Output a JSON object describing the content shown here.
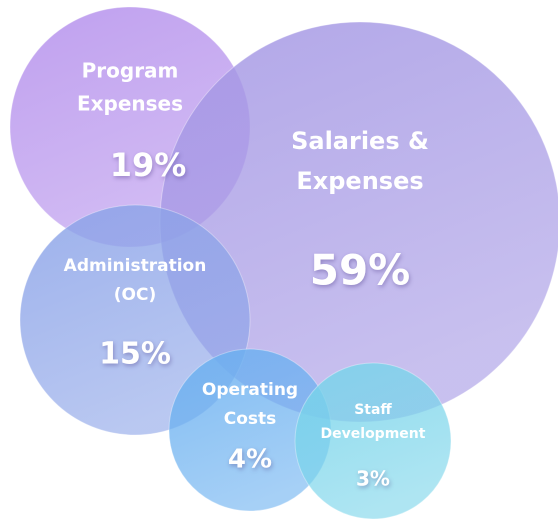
{
  "chart_data": {
    "type": "bubble",
    "categories": [
      [
        "Program",
        "Expenses"
      ],
      [
        "Salaries &",
        "Expenses"
      ],
      [
        "Administration",
        "(OC)"
      ],
      [
        "Operating",
        "Costs"
      ],
      [
        "Staff",
        "Development"
      ]
    ],
    "values": [
      19,
      59,
      15,
      4,
      3
    ],
    "value_labels": [
      "19%",
      "59%",
      "15%",
      "4%",
      "3%"
    ],
    "colors": [
      "#b48fec",
      "#a497e4",
      "#8ba3e8",
      "#6ab0f0",
      "#78d4ea"
    ]
  }
}
